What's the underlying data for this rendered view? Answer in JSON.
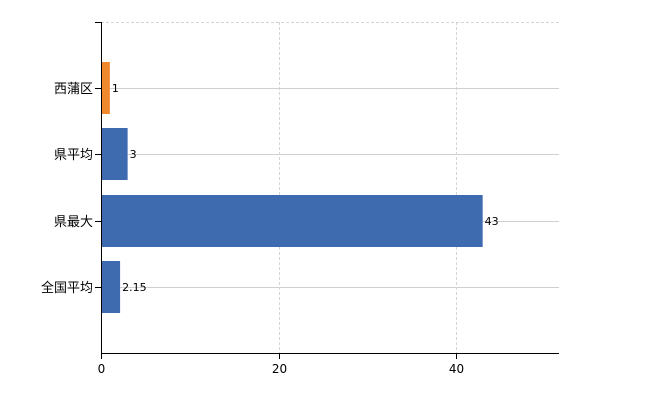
{
  "chart_data": {
    "type": "bar",
    "orientation": "horizontal",
    "title": "",
    "xlabel": "",
    "ylabel": "",
    "categories": [
      "西蒲区",
      "県平均",
      "県最大",
      "全国平均"
    ],
    "values": [
      1,
      3,
      43,
      2.15
    ],
    "data_labels": [
      "1",
      "3",
      "43",
      "2.15"
    ],
    "bar_colors": [
      "#f0892e",
      "#3e6bb0",
      "#3e6bb0",
      "#3e6bb0"
    ],
    "xlim": [
      0,
      51.6
    ],
    "x_ticks": [
      0,
      20,
      40
    ],
    "x_tick_labels": [
      "0",
      "20",
      "40"
    ],
    "grid": true,
    "legend": "none"
  }
}
